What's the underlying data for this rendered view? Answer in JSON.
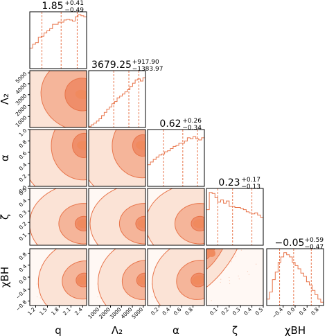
{
  "chart_data": {
    "type": "corner",
    "params": [
      {
        "key": "q",
        "label": "q",
        "range": [
          1.05,
          2.5
        ],
        "ticks": [
          "1.2",
          "1.5",
          "1.8",
          "2.1",
          "2.4"
        ],
        "tickvals": [
          1.2,
          1.5,
          1.8,
          2.1,
          2.4
        ],
        "median": "1.85",
        "plus": "+0.41",
        "minus": "−0.49",
        "quantiles": [
          1.36,
          1.85,
          2.26
        ],
        "hist": [
          0.38,
          0.45,
          0.48,
          0.58,
          0.6,
          0.66,
          0.7,
          0.74,
          0.82,
          0.82,
          0.86,
          0.86,
          0.9,
          0.91,
          0.9,
          0.88,
          0.96,
          1.0,
          0.98,
          0.96
        ]
      },
      {
        "key": "L2",
        "label": "Λ₂",
        "range": [
          0,
          5200
        ],
        "ticks": [
          "1000",
          "2000",
          "3000",
          "4000",
          "5000"
        ],
        "tickvals": [
          1000,
          2000,
          3000,
          4000,
          5000
        ],
        "median": "3679.25",
        "plus": "+917.90",
        "minus": "−1383.97",
        "quantiles": [
          2295,
          3679,
          4597
        ],
        "hist": [
          0.02,
          0.05,
          0.08,
          0.12,
          0.16,
          0.22,
          0.28,
          0.34,
          0.38,
          0.44,
          0.48,
          0.55,
          0.58,
          0.62,
          0.66,
          0.7,
          0.76,
          0.82,
          0.88,
          0.9,
          0.86,
          0.92
        ]
      },
      {
        "key": "alpha",
        "label": "α",
        "range": [
          0,
          1.0
        ],
        "ticks": [
          "0.2",
          "0.4",
          "0.6",
          "0.8"
        ],
        "tickvals": [
          0.2,
          0.4,
          0.6,
          0.8
        ],
        "median": "0.62",
        "plus": "+0.26",
        "minus": "−0.34",
        "quantiles": [
          0.28,
          0.62,
          0.88
        ],
        "hist": [
          0.4,
          0.45,
          0.5,
          0.54,
          0.58,
          0.6,
          0.64,
          0.66,
          0.7,
          0.74,
          0.76,
          0.8,
          0.8,
          0.84,
          0.9,
          0.88,
          0.92,
          0.88,
          0.86,
          0.9
        ]
      },
      {
        "key": "zeta",
        "label": "ζ",
        "range": [
          0,
          0.5
        ],
        "ticks": [
          "0.1",
          "0.2",
          "0.3",
          "0.4",
          "0.5"
        ],
        "tickvals": [
          0.1,
          0.2,
          0.3,
          0.4,
          0.5
        ],
        "median": "0.23",
        "plus": "+0.17",
        "minus": "−0.13",
        "quantiles": [
          0.1,
          0.23,
          0.4
        ],
        "hist": [
          0.66,
          0.98,
          0.96,
          0.88,
          0.8,
          0.84,
          0.78,
          0.82,
          0.72,
          0.72,
          0.7,
          0.7,
          0.68,
          0.66,
          0.62,
          0.6,
          0.58,
          0.6,
          0.56,
          0.52
        ]
      },
      {
        "key": "chibh",
        "label": "χBH",
        "range": [
          -0.95,
          0.95
        ],
        "ticks": [
          "−0.4",
          "0.0",
          "0.4",
          "0.8"
        ],
        "tickvals": [
          -0.4,
          0.0,
          0.4,
          0.8
        ],
        "median": "−0.05",
        "plus": "+0.59",
        "minus": "−0.47",
        "quantiles": [
          -0.52,
          -0.05,
          0.54
        ],
        "hist": [
          0.12,
          0.25,
          0.48,
          0.62,
          0.8,
          0.9,
          0.98,
          0.94,
          0.9,
          0.8,
          0.74,
          0.68,
          0.6,
          0.54,
          0.44,
          0.38,
          0.28,
          0.2,
          0.12,
          0.06
        ]
      }
    ],
    "y_axes": {
      "L2": {
        "ticks": [
          "1000",
          "2000",
          "3000",
          "4000",
          "5000"
        ],
        "tickvals": [
          1000,
          2000,
          3000,
          4000,
          5000
        ]
      },
      "alpha": {
        "ticks": [
          "0.0",
          "0.2",
          "0.4",
          "0.6",
          "0.8",
          "1.0"
        ],
        "tickvals": [
          0.0,
          0.2,
          0.4,
          0.6,
          0.8,
          1.0
        ]
      },
      "zeta": {
        "ticks": [
          "0.1",
          "0.2",
          "0.3",
          "0.4",
          "0.5"
        ],
        "tickvals": [
          0.1,
          0.2,
          0.3,
          0.4,
          0.5
        ]
      },
      "chibh": {
        "ticks": [
          "−0.8",
          "−0.4",
          "0.0",
          "0.4",
          "0.8"
        ],
        "tickvals": [
          -0.8,
          -0.4,
          0.0,
          0.4,
          0.8
        ]
      }
    },
    "colors": {
      "line": "#e8744a",
      "fill": "#fbe3d6",
      "mid": "#f5b59a",
      "dark": "#ef8e6a",
      "quantile": "#e8744a"
    }
  }
}
